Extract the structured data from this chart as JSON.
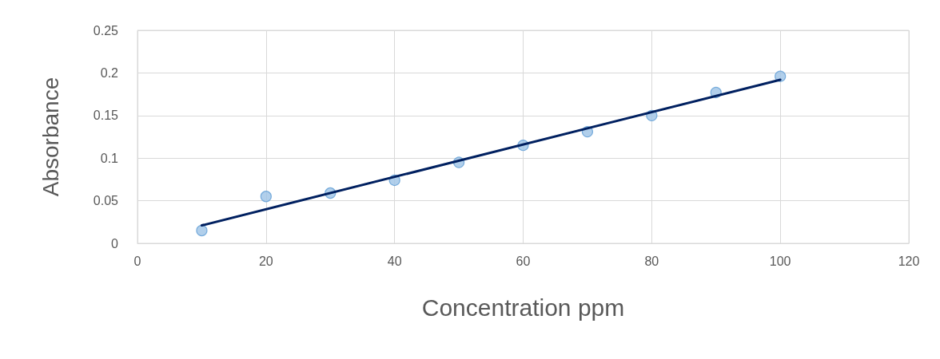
{
  "chart_data": {
    "type": "scatter",
    "xlabel": "Concentration ppm",
    "ylabel": "Absorbance",
    "x": [
      10,
      20,
      30,
      40,
      50,
      60,
      70,
      80,
      90,
      100
    ],
    "series": [
      {
        "color": "#9dc3e6",
        "values": [
          0.015,
          0.055,
          0.059,
          0.074,
          0.095,
          0.115,
          0.131,
          0.15,
          0.177,
          0.196
        ]
      },
      {
        "type": "line",
        "color": "#002060",
        "x": [
          10,
          100
        ],
        "values": [
          0.021,
          0.192
        ],
        "marker": "none"
      }
    ],
    "xlim": [
      0,
      120
    ],
    "xticks": [
      0,
      20,
      40,
      60,
      80,
      100,
      120
    ],
    "ylim": [
      0,
      0.25
    ],
    "yticks": [
      0,
      0.05,
      0.1,
      0.15,
      0.2,
      0.25
    ],
    "grid": true,
    "marker": "circle",
    "line_style": "solid"
  }
}
